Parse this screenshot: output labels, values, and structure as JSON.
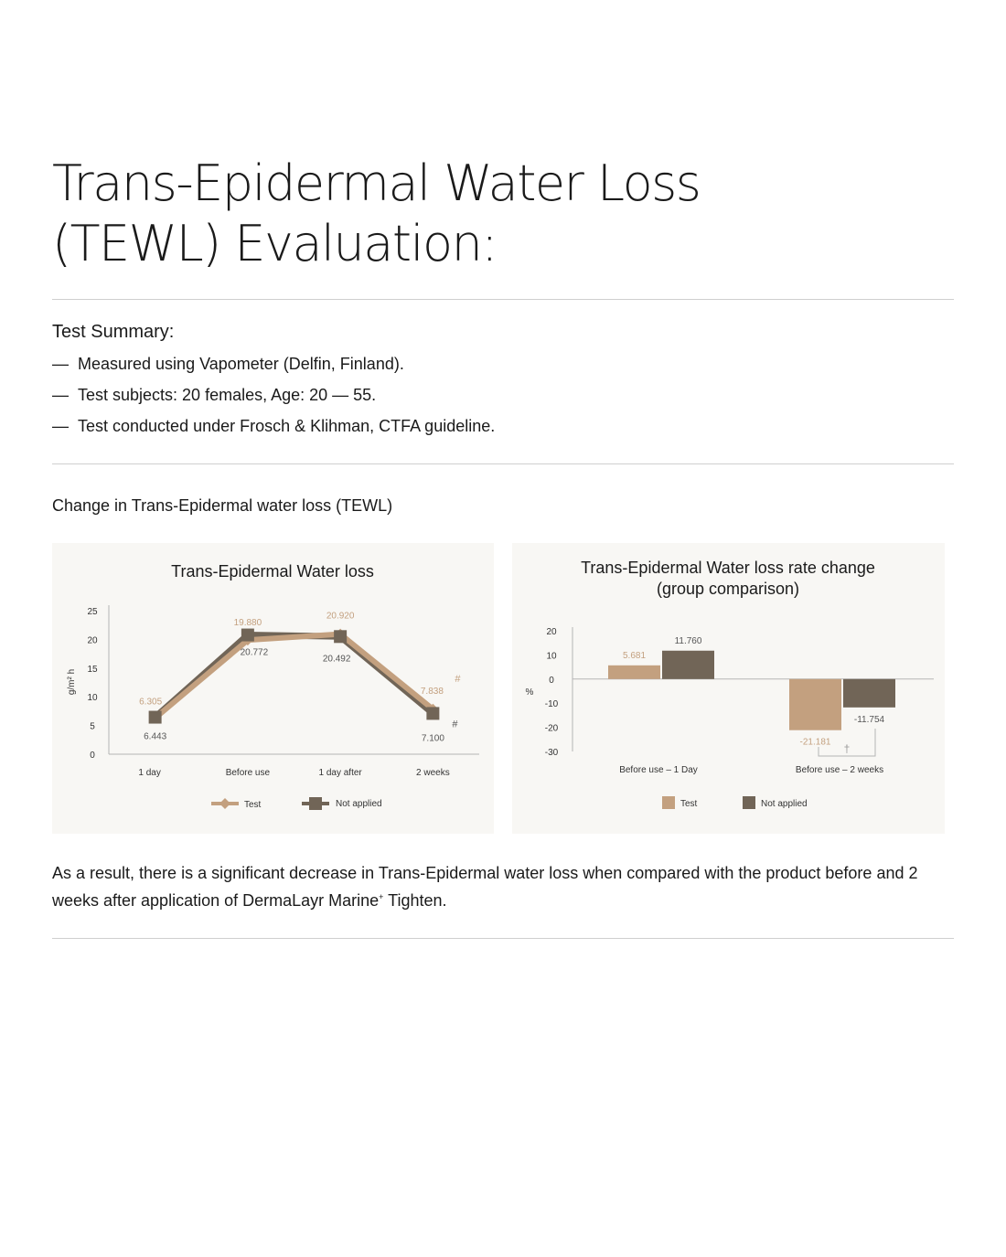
{
  "page": {
    "title_line1": "Trans-Epidermal Water Loss",
    "title_line2": "(TEWL) Evaluation:",
    "summary_heading": "Test Summary:",
    "summary_items": [
      {
        "dash": "—",
        "text": "Measured using Vapometer (Delfin, Finland)."
      },
      {
        "dash": "—",
        "text": "Test subjects: 20 females, Age: 20 — 55."
      },
      {
        "dash": "—",
        "text": "Test conducted under Frosch & Klihman, CTFA guideline."
      }
    ],
    "section_heading": "Change in Trans-Epidermal water loss (TEWL)",
    "result_text_a": "As a result, there is a significant decrease in Trans-Epidermal water loss when compared with the product before and 2 weeks after application of DermaLayr Marine",
    "result_sup": "+",
    "result_text_b": " Tighten."
  },
  "colors": {
    "test": "#c3a07f",
    "not_applied": "#716557",
    "panel_bg": "#f8f7f4",
    "axis": "#b5b5b5"
  },
  "chart_data": [
    {
      "type": "line",
      "title": "Trans-Epidermal Water loss",
      "ylabel": "g/m² h",
      "xlabel": "",
      "categories": [
        "1 day",
        "Before use",
        "1 day after",
        "2 weeks"
      ],
      "ylim": [
        0,
        25
      ],
      "yticks": [
        0,
        5,
        10,
        15,
        20,
        25
      ],
      "grid": false,
      "legend": "bottom",
      "series": [
        {
          "name": "Test",
          "marker": "diamond",
          "values": [
            6.305,
            19.88,
            20.92,
            7.838
          ],
          "labels": [
            "6.305",
            "19.880",
            "20.920",
            "7.838"
          ]
        },
        {
          "name": "Not applied",
          "marker": "square",
          "values": [
            6.443,
            20.772,
            20.492,
            7.1
          ],
          "labels": [
            "6.443",
            "20.772",
            "20.492",
            "7.100"
          ]
        }
      ],
      "annotations": [
        {
          "text": "#",
          "category": "2 weeks",
          "series": "Test"
        },
        {
          "text": "#",
          "category": "2 weeks",
          "series": "Not applied"
        }
      ]
    },
    {
      "type": "bar",
      "title": "Trans-Epidermal Water loss rate change",
      "subtitle": "(group comparison)",
      "ylabel": "%",
      "xlabel": "",
      "categories": [
        "Before use – 1 Day",
        "Before use – 2 weeks"
      ],
      "ylim": [
        -30,
        20
      ],
      "yticks": [
        20,
        10,
        0,
        -10,
        -20,
        -30
      ],
      "grid": false,
      "legend": "bottom",
      "series": [
        {
          "name": "Test",
          "values": [
            5.681,
            -21.181
          ],
          "labels": [
            "5.681",
            "-21.181"
          ]
        },
        {
          "name": "Not applied",
          "values": [
            11.76,
            -11.754
          ],
          "labels": [
            "11.760",
            "-11.754"
          ]
        }
      ],
      "annotations": [
        {
          "text": "†",
          "category": "Before use – 2 weeks"
        }
      ]
    }
  ]
}
